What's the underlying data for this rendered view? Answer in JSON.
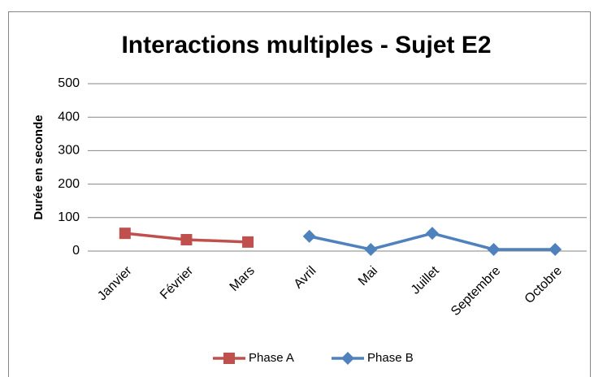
{
  "chart_data": {
    "type": "line",
    "title": "Interactions multiples - Sujet E2",
    "y_label": "Durée en seconde",
    "categories": [
      "Janvier",
      "Février",
      "Mars",
      "Avril",
      "Mai",
      "Juillet",
      "Septembre",
      "Octobre"
    ],
    "series": [
      {
        "name": "Phase A",
        "color": "#c0504d",
        "marker": "square",
        "values": [
          53,
          34,
          27,
          null,
          null,
          null,
          null,
          null
        ]
      },
      {
        "name": "Phase B",
        "color": "#4f81bd",
        "marker": "diamond",
        "values": [
          null,
          null,
          null,
          44,
          5,
          53,
          5,
          5
        ]
      }
    ],
    "ylim": [
      0,
      500
    ],
    "yticks": [
      0,
      100,
      200,
      300,
      400,
      500
    ],
    "grid": true,
    "legend": "bottom"
  }
}
